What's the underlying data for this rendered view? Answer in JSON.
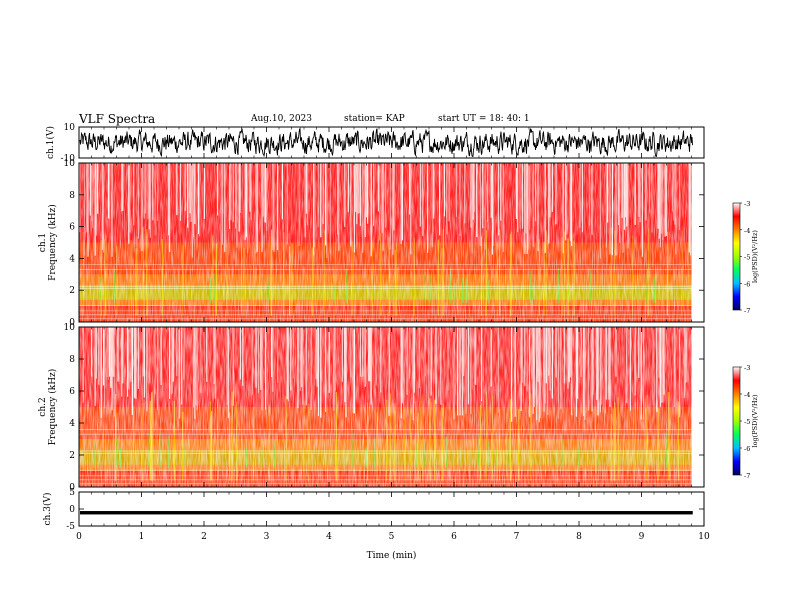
{
  "header": {
    "title": "VLF Spectra",
    "date": "Aug.10, 2023",
    "station": "station= KAP",
    "start": "start  UT  =   18: 40: 1"
  },
  "chart_data": [
    {
      "type": "line",
      "panel": "ch1-waveform",
      "ylabel": "ch.1(V)",
      "ylim": [
        -10,
        10
      ],
      "yticks": [
        "10",
        "-10"
      ],
      "xlim": [
        0,
        10
      ],
      "description": "dense oscillating waveform, amplitude roughly -8 to 8 V over 0-9.8 min"
    },
    {
      "type": "heatmap",
      "panel": "ch1-spectrogram",
      "ylabel": "ch.1\nFrequency  (kHz)",
      "ylim": [
        0,
        10
      ],
      "yticks": [
        "0",
        "2",
        "4",
        "6",
        "8",
        "10"
      ],
      "xlim": [
        0,
        10
      ],
      "data_extent_min": 9.8,
      "colorbar": {
        "label": "log(PSD)(V²/Hz)",
        "range": [
          -7,
          -3
        ],
        "ticks": [
          "-3",
          "-4",
          "-5",
          "-6",
          "-7"
        ],
        "colors": [
          "#000060",
          "#0000ff",
          "#00c0ff",
          "#00ff60",
          "#a0ff00",
          "#ffff00",
          "#ff8000",
          "#ff0000",
          "#ffffff"
        ]
      }
    },
    {
      "type": "heatmap",
      "panel": "ch2-spectrogram",
      "ylabel": "ch.2\nFrequency  (kHz)",
      "ylim": [
        0,
        10
      ],
      "yticks": [
        "0",
        "2",
        "4",
        "6",
        "8",
        "10"
      ],
      "xlim": [
        0,
        10
      ],
      "data_extent_min": 9.8,
      "colorbar": {
        "label": "log(PSD)(V²/Hz)",
        "range": [
          -7,
          -3
        ],
        "ticks": [
          "-3",
          "-4",
          "-5",
          "-6",
          "-7"
        ],
        "colors": [
          "#000060",
          "#0000ff",
          "#00c0ff",
          "#00ff60",
          "#a0ff00",
          "#ffff00",
          "#ff8000",
          "#ff0000",
          "#ffffff"
        ]
      }
    },
    {
      "type": "line",
      "panel": "ch3-waveform",
      "ylabel": "ch.3(V)",
      "ylim": [
        -5,
        5
      ],
      "yticks": [
        "5",
        "0",
        "-5"
      ],
      "xlim": [
        0,
        10
      ],
      "description": "thin dense band around -1 V"
    }
  ],
  "xaxis": {
    "label": "Time  (min)",
    "ticks": [
      "0",
      "1",
      "2",
      "3",
      "4",
      "5",
      "6",
      "7",
      "8",
      "9",
      "10"
    ]
  },
  "style": {
    "background": "#ffffff",
    "axis_color": "#000000",
    "wave_color": "#000000"
  }
}
